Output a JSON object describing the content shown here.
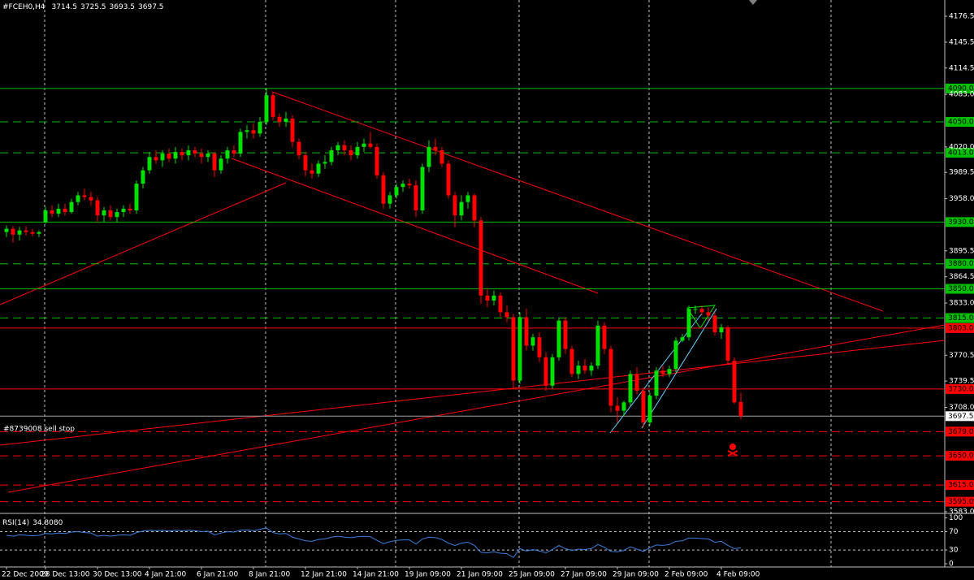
{
  "header": {
    "symbol": "#FCEH0,H4",
    "ohlc": [
      3714.5,
      3725.5,
      3693.5,
      3697.5
    ]
  },
  "chart_data": [
    {
      "type": "candlestick",
      "annotation": "#8739008 sell stop",
      "up_color": "#00e000",
      "down_color": "#ff0000",
      "ylim": [
        3582,
        4196
      ],
      "yticks": [
        4176.5,
        4145.5,
        4114.5,
        {
          "value": 4083,
          "label": "4083.0"
        },
        {
          "value": 4020,
          "label": "4020.0"
        },
        3989.5,
        {
          "value": 3958,
          "label": "3958.0"
        },
        3895.5,
        3864.5,
        {
          "value": 3833,
          "label": "3833.0"
        },
        3770.5,
        3739.5,
        {
          "value": 3708,
          "label": "3708.0"
        },
        {
          "value": 3583,
          "label": "3583.0"
        }
      ],
      "last_price": 3697.5,
      "levels": [
        {
          "value": 4090,
          "label": "4090.0",
          "color": "#00c000",
          "dashed": false
        },
        {
          "value": 4050,
          "label": "4050.0",
          "color": "#00c000",
          "dashed": true
        },
        {
          "value": 4013,
          "label": "4013.0",
          "color": "#00c000",
          "dashed": true
        },
        {
          "value": 3930,
          "label": "3930.0",
          "color": "#00c000",
          "dashed": false
        },
        {
          "value": 3880,
          "label": "3880.0",
          "color": "#00c000",
          "dashed": true
        },
        {
          "value": 3850,
          "label": "3850.0",
          "color": "#00c000",
          "dashed": false
        },
        {
          "value": 3815,
          "label": "3815.0",
          "color": "#00c000",
          "dashed": true
        },
        {
          "value": 3803,
          "label": "3803.0",
          "color": "#ff0000",
          "dashed": false
        },
        {
          "value": 3730,
          "label": "3730.0",
          "color": "#ff0000",
          "dashed": false
        },
        {
          "value": 3679,
          "label": "3679.0",
          "color": "#ff0000",
          "dashed": true
        },
        {
          "value": 3650,
          "label": "3650.0",
          "color": "#ff0000",
          "dashed": true
        },
        {
          "value": 3615,
          "label": "3615.0",
          "color": "#ff0000",
          "dashed": true
        },
        {
          "value": 3595,
          "label": "3595.0",
          "color": "#ff0000",
          "dashed": true
        }
      ],
      "categories": [
        "22 Dec 2009",
        null,
        null,
        null,
        null,
        null,
        "28 Dec 13:00",
        null,
        null,
        null,
        null,
        null,
        null,
        null,
        "30 Dec 13:00",
        null,
        null,
        null,
        null,
        null,
        null,
        null,
        "4 Jan 21:00",
        null,
        null,
        null,
        null,
        null,
        null,
        null,
        "6 Jan 21:00",
        null,
        null,
        null,
        null,
        null,
        null,
        null,
        "8 Jan 21:00",
        null,
        null,
        null,
        null,
        null,
        null,
        null,
        "12 Jan 21:00",
        null,
        null,
        null,
        null,
        null,
        null,
        null,
        "14 Jan 21:00",
        null,
        null,
        null,
        null,
        null,
        null,
        null,
        "19 Jan 09:00",
        null,
        null,
        null,
        null,
        null,
        null,
        null,
        "21 Jan 09:00",
        null,
        null,
        null,
        null,
        null,
        null,
        null,
        "25 Jan 09:00",
        null,
        null,
        null,
        null,
        null,
        null,
        null,
        "27 Jan 09:00",
        null,
        null,
        null,
        null,
        null,
        null,
        null,
        "29 Jan 09:00",
        null,
        null,
        null,
        null,
        null,
        null,
        null,
        "2 Feb 09:00",
        null,
        null,
        null,
        null,
        null,
        null,
        null,
        "4 Feb 09:00",
        null,
        null,
        null
      ],
      "candles": [
        [
          3918,
          3926,
          3912,
          3922
        ],
        [
          3922,
          3925,
          3905,
          3915
        ],
        [
          3915,
          3924,
          3908,
          3920
        ],
        [
          3920,
          3925,
          3914,
          3918
        ],
        [
          3918,
          3922,
          3913,
          3916
        ],
        [
          3916,
          3920,
          3912,
          3918
        ],
        [
          3930,
          3948,
          3928,
          3944
        ],
        [
          3944,
          3950,
          3936,
          3940
        ],
        [
          3940,
          3952,
          3936,
          3946
        ],
        [
          3946,
          3952,
          3938,
          3942
        ],
        [
          3942,
          3958,
          3940,
          3954
        ],
        [
          3954,
          3966,
          3950,
          3962
        ],
        [
          3962,
          3970,
          3956,
          3960
        ],
        [
          3960,
          3966,
          3950,
          3956
        ],
        [
          3956,
          3960,
          3930,
          3938
        ],
        [
          3938,
          3948,
          3930,
          3944
        ],
        [
          3944,
          3950,
          3932,
          3936
        ],
        [
          3936,
          3946,
          3930,
          3942
        ],
        [
          3942,
          3950,
          3936,
          3946
        ],
        [
          3946,
          3952,
          3940,
          3944
        ],
        [
          3944,
          3980,
          3940,
          3976
        ],
        [
          3976,
          3996,
          3970,
          3992
        ],
        [
          3992,
          4014,
          3988,
          4008
        ],
        [
          4008,
          4016,
          4000,
          4004
        ],
        [
          4004,
          4016,
          3996,
          4012
        ],
        [
          4012,
          4018,
          4002,
          4006
        ],
        [
          4006,
          4020,
          4000,
          4014
        ],
        [
          4014,
          4018,
          4004,
          4010
        ],
        [
          4010,
          4022,
          4004,
          4016
        ],
        [
          4016,
          4020,
          4008,
          4012
        ],
        [
          4012,
          4018,
          4000,
          4008
        ],
        [
          4008,
          4016,
          4002,
          4012
        ],
        [
          4012,
          4014,
          3984,
          3992
        ],
        [
          3992,
          4010,
          3988,
          4006
        ],
        [
          4006,
          4020,
          4000,
          4016
        ],
        [
          4016,
          4022,
          4008,
          4012
        ],
        [
          4012,
          4042,
          4008,
          4038
        ],
        [
          4038,
          4046,
          4030,
          4040
        ],
        [
          4040,
          4048,
          4030,
          4036
        ],
        [
          4036,
          4056,
          4032,
          4050
        ],
        [
          4050,
          4090,
          4046,
          4082
        ],
        [
          4082,
          4086,
          4052,
          4056
        ],
        [
          4056,
          4060,
          4044,
          4050
        ],
        [
          4050,
          4062,
          4044,
          4054
        ],
        [
          4054,
          4058,
          4020,
          4026
        ],
        [
          4026,
          4030,
          4005,
          4010
        ],
        [
          4010,
          4014,
          3985,
          3992
        ],
        [
          3992,
          4000,
          3982,
          3988
        ],
        [
          3988,
          4004,
          3984,
          4000
        ],
        [
          4000,
          4010,
          3994,
          4002
        ],
        [
          4002,
          4020,
          3998,
          4016
        ],
        [
          4016,
          4026,
          4010,
          4022
        ],
        [
          4022,
          4028,
          4010,
          4016
        ],
        [
          4016,
          4022,
          4004,
          4010
        ],
        [
          4010,
          4026,
          4006,
          4020
        ],
        [
          4020,
          4030,
          4014,
          4024
        ],
        [
          4024,
          4038,
          4018,
          4020
        ],
        [
          4020,
          4024,
          3982,
          3986
        ],
        [
          3986,
          3990,
          3946,
          3952
        ],
        [
          3952,
          3966,
          3946,
          3962
        ],
        [
          3962,
          3976,
          3958,
          3972
        ],
        [
          3972,
          3980,
          3966,
          3976
        ],
        [
          3976,
          3982,
          3970,
          3974
        ],
        [
          3974,
          3980,
          3936,
          3944
        ],
        [
          3944,
          4000,
          3940,
          3996
        ],
        [
          3996,
          4028,
          3990,
          4020
        ],
        [
          4020,
          4030,
          4010,
          4016
        ],
        [
          4016,
          4020,
          3996,
          4000
        ],
        [
          4000,
          4004,
          3958,
          3962
        ],
        [
          3962,
          3966,
          3924,
          3938
        ],
        [
          3938,
          3962,
          3932,
          3954
        ],
        [
          3954,
          3966,
          3946,
          3962
        ],
        [
          3962,
          3964,
          3924,
          3932
        ],
        [
          3932,
          3936,
          3832,
          3842
        ],
        [
          3842,
          3850,
          3828,
          3836
        ],
        [
          3836,
          3848,
          3830,
          3842
        ],
        [
          3842,
          3846,
          3816,
          3822
        ],
        [
          3822,
          3830,
          3810,
          3816
        ],
        [
          3816,
          3820,
          3730,
          3740
        ],
        [
          3740,
          3822,
          3736,
          3816
        ],
        [
          3816,
          3826,
          3776,
          3782
        ],
        [
          3782,
          3796,
          3776,
          3792
        ],
        [
          3792,
          3798,
          3762,
          3768
        ],
        [
          3768,
          3774,
          3728,
          3734
        ],
        [
          3734,
          3772,
          3730,
          3768
        ],
        [
          3768,
          3816,
          3764,
          3812
        ],
        [
          3812,
          3816,
          3772,
          3778
        ],
        [
          3778,
          3782,
          3744,
          3748
        ],
        [
          3748,
          3764,
          3742,
          3758
        ],
        [
          3758,
          3766,
          3748,
          3752
        ],
        [
          3752,
          3762,
          3746,
          3758
        ],
        [
          3758,
          3812,
          3754,
          3806
        ],
        [
          3806,
          3810,
          3772,
          3778
        ],
        [
          3778,
          3782,
          3702,
          3710
        ],
        [
          3710,
          3720,
          3690,
          3704
        ],
        [
          3704,
          3716,
          3698,
          3714
        ],
        [
          3714,
          3752,
          3710,
          3748
        ],
        [
          3748,
          3756,
          3724,
          3728
        ],
        [
          3728,
          3732,
          3684,
          3690
        ],
        [
          3690,
          3726,
          3686,
          3722
        ],
        [
          3722,
          3756,
          3718,
          3752
        ],
        [
          3752,
          3758,
          3744,
          3748
        ],
        [
          3748,
          3758,
          3744,
          3754
        ],
        [
          3754,
          3792,
          3750,
          3788
        ],
        [
          3788,
          3796,
          3786,
          3792
        ],
        [
          3792,
          3830,
          3788,
          3826
        ],
        [
          3826,
          3830,
          3820,
          3826
        ],
        [
          3826,
          3830,
          3818,
          3822
        ],
        [
          3822,
          3828,
          3812,
          3818
        ],
        [
          3818,
          3822,
          3794,
          3798
        ],
        [
          3798,
          3808,
          3790,
          3804
        ],
        [
          3804,
          3806,
          3760,
          3764
        ],
        [
          3764,
          3768,
          3712,
          3714
        ],
        [
          3714.5,
          3725.5,
          3693.5,
          3697.5
        ]
      ]
    },
    {
      "type": "line",
      "title": "RSI(14)",
      "current": {
        "value": 34.808,
        "label": "34.8080"
      },
      "color": "#3a7fe0",
      "ylim": [
        -7,
        108
      ],
      "yticks": [
        100,
        70,
        30,
        0
      ],
      "levels": [
        70,
        30
      ],
      "values": [
        62,
        60,
        63,
        62,
        61,
        62,
        66,
        65,
        67,
        66,
        69,
        70,
        68,
        67,
        60,
        62,
        60,
        62,
        63,
        62,
        68,
        71,
        73,
        72,
        73,
        71,
        73,
        72,
        73,
        72,
        70,
        71,
        63,
        67,
        70,
        69,
        73,
        74,
        72,
        75,
        78,
        68,
        65,
        66,
        58,
        54,
        50,
        49,
        53,
        54,
        58,
        60,
        58,
        57,
        59,
        60,
        59,
        51,
        44,
        48,
        51,
        52,
        52,
        43,
        54,
        58,
        57,
        53,
        45,
        40,
        45,
        47,
        40,
        25,
        24,
        26,
        23,
        22,
        14,
        33,
        28,
        31,
        28,
        24,
        31,
        40,
        33,
        29,
        32,
        31,
        33,
        42,
        36,
        27,
        26,
        29,
        37,
        32,
        27,
        35,
        41,
        40,
        42,
        49,
        50,
        56,
        56,
        55,
        54,
        47,
        49,
        40,
        33,
        34.808
      ]
    }
  ]
}
